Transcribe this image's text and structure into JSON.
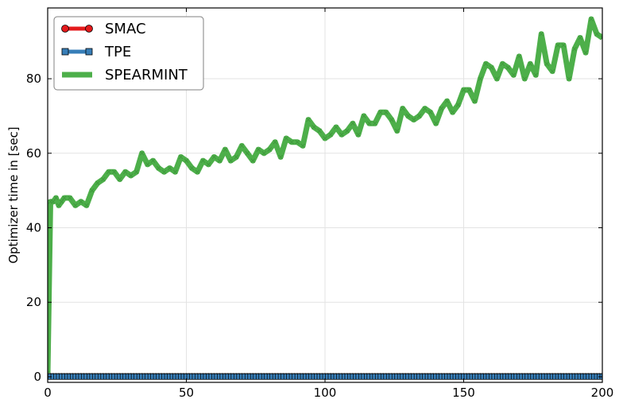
{
  "chart_data": {
    "type": "line",
    "xlabel": "",
    "ylabel": "Optimizer time in [sec]",
    "xlim": [
      0,
      200
    ],
    "ylim": [
      -1.5,
      99
    ],
    "xticks": [
      0,
      50,
      100,
      150,
      200
    ],
    "yticks": [
      0,
      20,
      40,
      60,
      80
    ],
    "grid": true,
    "legend_position": "top-left",
    "series": [
      {
        "name": "SMAC",
        "color": "#e41a1c",
        "marker": "circle",
        "x": [
          0,
          200
        ],
        "y": [
          0.15,
          0.15
        ]
      },
      {
        "name": "TPE",
        "color": "#377eb8",
        "marker": "square",
        "x": [
          0,
          200
        ],
        "y": [
          0.05,
          0.05
        ]
      },
      {
        "name": "SPEARMINT",
        "color": "#4daf4a",
        "marker": "x",
        "x": [
          0,
          1,
          2,
          3,
          4,
          5,
          6,
          8,
          10,
          12,
          14,
          16,
          18,
          20,
          22,
          24,
          26,
          28,
          30,
          32,
          34,
          36,
          38,
          40,
          42,
          44,
          46,
          48,
          50,
          52,
          54,
          56,
          58,
          60,
          62,
          64,
          66,
          68,
          70,
          72,
          74,
          76,
          78,
          80,
          82,
          84,
          86,
          88,
          90,
          92,
          94,
          96,
          98,
          100,
          102,
          104,
          106,
          108,
          110,
          112,
          114,
          116,
          118,
          120,
          122,
          124,
          126,
          128,
          130,
          132,
          134,
          136,
          138,
          140,
          142,
          144,
          146,
          148,
          150,
          152,
          154,
          156,
          158,
          160,
          162,
          164,
          166,
          168,
          170,
          172,
          174,
          176,
          178,
          180,
          182,
          184,
          186,
          188,
          190,
          192,
          194,
          196,
          198,
          200
        ],
        "y": [
          1,
          47,
          47,
          48,
          46,
          47,
          48,
          48,
          46,
          47,
          46,
          50,
          52,
          53,
          55,
          55,
          53,
          55,
          54,
          55,
          60,
          57,
          58,
          56,
          55,
          56,
          55,
          59,
          58,
          56,
          55,
          58,
          57,
          59,
          58,
          61,
          58,
          59,
          62,
          60,
          58,
          61,
          60,
          61,
          63,
          59,
          64,
          63,
          63,
          62,
          69,
          67,
          66,
          64,
          65,
          67,
          65,
          66,
          68,
          65,
          70,
          68,
          68,
          71,
          71,
          69,
          66,
          72,
          70,
          69,
          70,
          72,
          71,
          68,
          72,
          74,
          71,
          73,
          77,
          77,
          74,
          80,
          84,
          83,
          80,
          84,
          83,
          81,
          86,
          80,
          84,
          81,
          92,
          84,
          82,
          89,
          89,
          80,
          88,
          91,
          87,
          96,
          92,
          91
        ]
      }
    ],
    "legend": [
      "SMAC",
      "TPE",
      "SPEARMINT"
    ]
  }
}
